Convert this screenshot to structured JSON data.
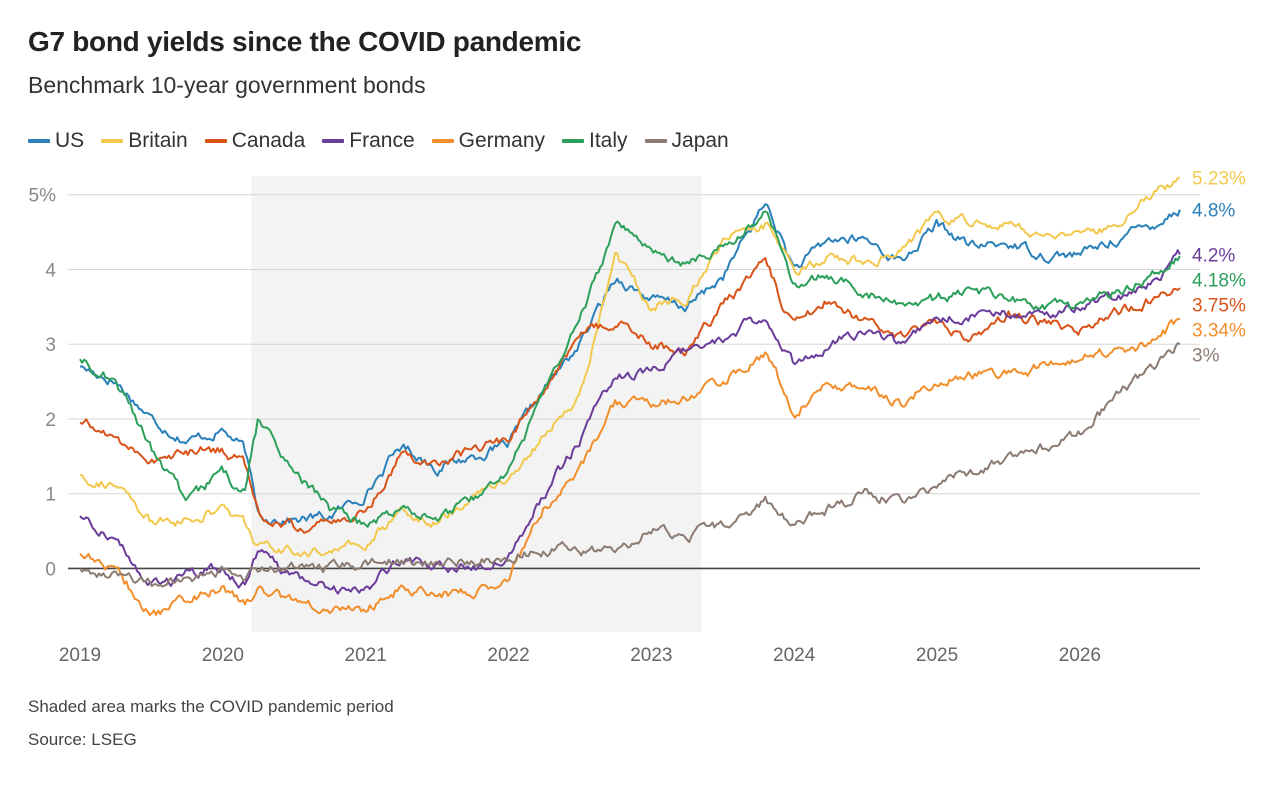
{
  "header": {
    "title": "G7 bond yields since the COVID pandemic",
    "subtitle": "Benchmark 10-year government bonds"
  },
  "footer": {
    "note": "Shaded area marks the COVID pandemic period",
    "source": "Source: LSEG"
  },
  "chart_data": {
    "type": "line",
    "title": "G7 bond yields since the COVID pandemic",
    "subtitle": "Benchmark 10-year government bonds",
    "xlabel": "",
    "ylabel": "",
    "xlim": [
      2019.0,
      2026.75
    ],
    "ylim": [
      -0.85,
      5.25
    ],
    "x_ticks": [
      {
        "value": 2019,
        "label": "2019"
      },
      {
        "value": 2020,
        "label": "2020"
      },
      {
        "value": 2021,
        "label": "2021"
      },
      {
        "value": 2022,
        "label": "2022"
      },
      {
        "value": 2023,
        "label": "2023"
      },
      {
        "value": 2024,
        "label": "2024"
      },
      {
        "value": 2025,
        "label": "2025"
      },
      {
        "value": 2026,
        "label": "2026"
      }
    ],
    "y_ticks": [
      {
        "value": 0,
        "label": "0"
      },
      {
        "value": 1,
        "label": "1"
      },
      {
        "value": 2,
        "label": "2"
      },
      {
        "value": 3,
        "label": "3"
      },
      {
        "value": 4,
        "label": "4"
      },
      {
        "value": 5,
        "label": "5%"
      }
    ],
    "grid": true,
    "legend_position": "top-left",
    "shaded_period": {
      "start": 2020.2,
      "end": 2023.35
    },
    "series": [
      {
        "name": "US",
        "color": "#2a80b9",
        "end_label": "4.8%",
        "x": [
          2019.0,
          2019.25,
          2019.5,
          2019.75,
          2020.0,
          2020.15,
          2020.25,
          2020.5,
          2020.75,
          2021.0,
          2021.25,
          2021.5,
          2021.75,
          2022.0,
          2022.25,
          2022.5,
          2022.75,
          2023.0,
          2023.25,
          2023.5,
          2023.8,
          2024.0,
          2024.25,
          2024.5,
          2024.75,
          2025.0,
          2025.25,
          2025.5,
          2025.75,
          2026.0,
          2026.25,
          2026.5,
          2026.7
        ],
        "y": [
          2.7,
          2.5,
          2.0,
          1.7,
          1.85,
          1.6,
          0.7,
          0.65,
          0.7,
          1.0,
          1.65,
          1.35,
          1.5,
          1.65,
          2.4,
          3.0,
          3.9,
          3.6,
          3.5,
          3.9,
          4.9,
          4.0,
          4.4,
          4.4,
          4.1,
          4.6,
          4.3,
          4.35,
          4.2,
          4.2,
          4.4,
          4.6,
          4.8
        ]
      },
      {
        "name": "Britain",
        "color": "#f2c94c",
        "end_label": "5.23%",
        "x": [
          2019.0,
          2019.25,
          2019.5,
          2019.75,
          2020.0,
          2020.15,
          2020.25,
          2020.5,
          2020.75,
          2021.0,
          2021.25,
          2021.5,
          2021.75,
          2022.0,
          2022.25,
          2022.5,
          2022.75,
          2023.0,
          2023.25,
          2023.5,
          2023.8,
          2024.0,
          2024.25,
          2024.5,
          2024.75,
          2025.0,
          2025.25,
          2025.5,
          2025.75,
          2026.0,
          2026.25,
          2026.5,
          2026.7
        ],
        "y": [
          1.25,
          1.1,
          0.6,
          0.65,
          0.8,
          0.6,
          0.3,
          0.2,
          0.25,
          0.3,
          0.8,
          0.6,
          1.0,
          1.2,
          1.8,
          2.3,
          4.2,
          3.5,
          3.6,
          4.4,
          4.6,
          3.9,
          4.2,
          4.1,
          4.3,
          4.7,
          4.6,
          4.6,
          4.5,
          4.4,
          4.6,
          5.0,
          5.23
        ]
      },
      {
        "name": "Canada",
        "color": "#d95319",
        "end_label": "3.75%",
        "x": [
          2019.0,
          2019.25,
          2019.5,
          2019.75,
          2020.0,
          2020.15,
          2020.25,
          2020.5,
          2020.75,
          2021.0,
          2021.25,
          2021.5,
          2021.75,
          2022.0,
          2022.25,
          2022.5,
          2022.75,
          2023.0,
          2023.25,
          2023.5,
          2023.8,
          2024.0,
          2024.25,
          2024.5,
          2024.75,
          2025.0,
          2025.25,
          2025.5,
          2025.75,
          2026.0,
          2026.25,
          2026.5,
          2026.7
        ],
        "y": [
          1.95,
          1.75,
          1.45,
          1.55,
          1.6,
          1.4,
          0.7,
          0.55,
          0.6,
          0.75,
          1.55,
          1.4,
          1.6,
          1.75,
          2.4,
          3.1,
          3.3,
          3.0,
          2.9,
          3.5,
          4.1,
          3.2,
          3.6,
          3.3,
          3.1,
          3.3,
          3.1,
          3.4,
          3.3,
          3.2,
          3.4,
          3.6,
          3.75
        ]
      },
      {
        "name": "France",
        "color": "#6a3d9a",
        "end_label": "4.2%",
        "x": [
          2019.0,
          2019.25,
          2019.5,
          2019.75,
          2020.0,
          2020.15,
          2020.25,
          2020.5,
          2020.75,
          2021.0,
          2021.25,
          2021.5,
          2021.75,
          2022.0,
          2022.25,
          2022.5,
          2022.75,
          2023.0,
          2023.25,
          2023.5,
          2023.8,
          2024.0,
          2024.25,
          2024.5,
          2024.75,
          2025.0,
          2025.25,
          2025.5,
          2025.75,
          2026.0,
          2026.25,
          2026.5,
          2026.7
        ],
        "y": [
          0.7,
          0.4,
          -0.25,
          -0.1,
          0.0,
          -0.2,
          0.2,
          -0.15,
          -0.25,
          -0.3,
          0.15,
          0.0,
          0.0,
          0.2,
          1.0,
          1.7,
          2.6,
          2.6,
          2.9,
          3.1,
          3.4,
          2.7,
          3.0,
          3.2,
          3.0,
          3.3,
          3.4,
          3.4,
          3.4,
          3.5,
          3.6,
          3.8,
          4.2
        ]
      },
      {
        "name": "Germany",
        "color": "#f28e2b",
        "end_label": "3.34%",
        "x": [
          2019.0,
          2019.25,
          2019.5,
          2019.75,
          2020.0,
          2020.15,
          2020.25,
          2020.5,
          2020.75,
          2021.0,
          2021.25,
          2021.5,
          2021.75,
          2022.0,
          2022.25,
          2022.5,
          2022.75,
          2023.0,
          2023.25,
          2023.5,
          2023.8,
          2024.0,
          2024.25,
          2024.5,
          2024.75,
          2025.0,
          2025.25,
          2025.5,
          2025.75,
          2026.0,
          2026.25,
          2026.5,
          2026.7
        ],
        "y": [
          0.2,
          0.0,
          -0.65,
          -0.4,
          -0.25,
          -0.5,
          -0.3,
          -0.45,
          -0.55,
          -0.55,
          -0.25,
          -0.35,
          -0.3,
          -0.1,
          0.8,
          1.3,
          2.2,
          2.2,
          2.3,
          2.5,
          2.9,
          2.1,
          2.5,
          2.4,
          2.2,
          2.5,
          2.6,
          2.6,
          2.7,
          2.8,
          2.9,
          3.0,
          3.34
        ]
      },
      {
        "name": "Italy",
        "color": "#2ca05a",
        "end_label": "4.18%",
        "x": [
          2019.0,
          2019.25,
          2019.5,
          2019.75,
          2020.0,
          2020.15,
          2020.25,
          2020.5,
          2020.75,
          2021.0,
          2021.25,
          2021.5,
          2021.75,
          2022.0,
          2022.25,
          2022.5,
          2022.75,
          2023.0,
          2023.25,
          2023.5,
          2023.8,
          2024.0,
          2024.25,
          2024.5,
          2024.75,
          2025.0,
          2025.25,
          2025.5,
          2025.75,
          2026.0,
          2026.25,
          2026.5,
          2026.7
        ],
        "y": [
          2.8,
          2.5,
          1.6,
          0.9,
          1.3,
          1.0,
          2.0,
          1.3,
          0.8,
          0.55,
          0.8,
          0.7,
          0.9,
          1.3,
          2.3,
          3.3,
          4.6,
          4.2,
          4.1,
          4.3,
          4.8,
          3.8,
          3.9,
          3.7,
          3.5,
          3.6,
          3.7,
          3.6,
          3.5,
          3.5,
          3.7,
          3.9,
          4.18
        ]
      },
      {
        "name": "Japan",
        "color": "#8c7b72",
        "end_label": "3%",
        "x": [
          2019.0,
          2019.25,
          2019.5,
          2019.75,
          2020.0,
          2020.15,
          2020.25,
          2020.5,
          2020.75,
          2021.0,
          2021.25,
          2021.5,
          2021.75,
          2022.0,
          2022.25,
          2022.5,
          2022.75,
          2023.0,
          2023.25,
          2023.5,
          2023.8,
          2024.0,
          2024.25,
          2024.5,
          2024.75,
          2025.0,
          2025.25,
          2025.5,
          2025.75,
          2026.0,
          2026.25,
          2026.5,
          2026.7
        ],
        "y": [
          0.0,
          -0.05,
          -0.2,
          -0.15,
          -0.05,
          -0.1,
          0.0,
          0.02,
          0.03,
          0.05,
          0.1,
          0.05,
          0.07,
          0.15,
          0.25,
          0.25,
          0.25,
          0.5,
          0.4,
          0.6,
          0.9,
          0.6,
          0.8,
          1.0,
          0.9,
          1.1,
          1.3,
          1.5,
          1.6,
          1.8,
          2.3,
          2.7,
          3.0
        ]
      }
    ]
  }
}
